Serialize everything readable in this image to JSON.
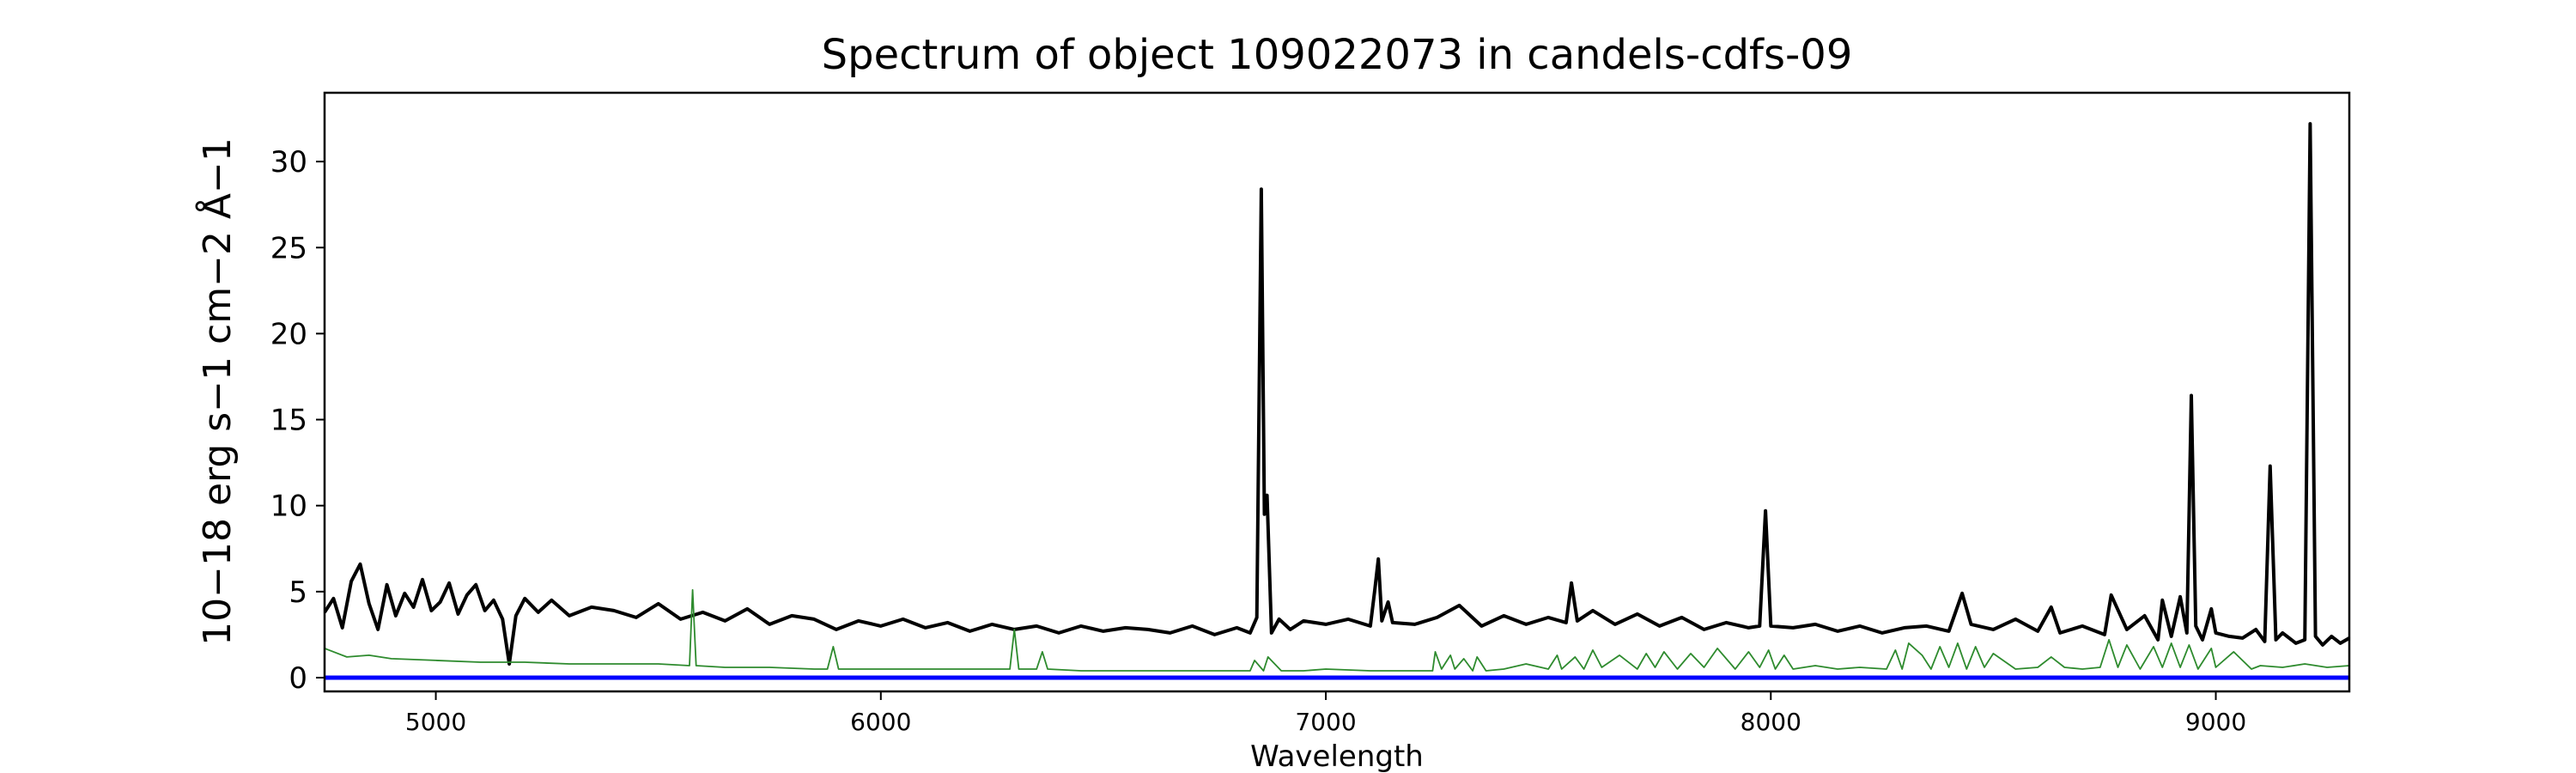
{
  "chart_data": {
    "type": "line",
    "title": "Spectrum of object 109022073 in candels-cdfs-09",
    "xlabel": "Wavelength",
    "ylabel": "10−18 erg s−1 cm−2 Å−1",
    "xlim": [
      4750,
      9300
    ],
    "ylim": [
      -0.8,
      34
    ],
    "x_ticks": [
      5000,
      6000,
      7000,
      8000,
      9000
    ],
    "y_ticks": [
      0,
      5,
      10,
      15,
      20,
      25,
      30
    ],
    "grid": false,
    "legend": "none",
    "series": [
      {
        "color": "#000000",
        "x": [
          4750,
          4770,
          4790,
          4810,
          4830,
          4850,
          4870,
          4890,
          4910,
          4930,
          4950,
          4970,
          4990,
          5010,
          5030,
          5050,
          5070,
          5090,
          5110,
          5130,
          5150,
          5165,
          5180,
          5200,
          5230,
          5260,
          5300,
          5350,
          5400,
          5450,
          5500,
          5550,
          5600,
          5650,
          5700,
          5750,
          5800,
          5850,
          5900,
          5950,
          6000,
          6050,
          6100,
          6150,
          6200,
          6250,
          6300,
          6350,
          6400,
          6450,
          6500,
          6550,
          6600,
          6650,
          6700,
          6750,
          6800,
          6830,
          6845,
          6855,
          6862,
          6868,
          6878,
          6895,
          6920,
          6950,
          7000,
          7050,
          7100,
          7110,
          7118,
          7126,
          7140,
          7150,
          7200,
          7250,
          7300,
          7350,
          7400,
          7450,
          7500,
          7540,
          7552,
          7565,
          7600,
          7650,
          7700,
          7750,
          7800,
          7850,
          7900,
          7950,
          7975,
          7988,
          8000,
          8050,
          8100,
          8150,
          8200,
          8250,
          8300,
          8350,
          8400,
          8430,
          8450,
          8500,
          8550,
          8600,
          8630,
          8650,
          8700,
          8750,
          8765,
          8800,
          8840,
          8870,
          8880,
          8900,
          8920,
          8935,
          8945,
          8955,
          8970,
          8990,
          9000,
          9030,
          9060,
          9090,
          9110,
          9122,
          9135,
          9150,
          9180,
          9200,
          9212,
          9224,
          9240,
          9260,
          9280,
          9300
        ],
        "y": [
          3.8,
          4.6,
          2.9,
          5.6,
          6.6,
          4.3,
          2.8,
          5.4,
          3.6,
          4.9,
          4.1,
          5.7,
          3.9,
          4.4,
          5.5,
          3.7,
          4.8,
          5.4,
          3.9,
          4.5,
          3.4,
          0.8,
          3.6,
          4.6,
          3.8,
          4.5,
          3.6,
          4.1,
          3.9,
          3.5,
          4.3,
          3.4,
          3.8,
          3.3,
          4.0,
          3.1,
          3.6,
          3.4,
          2.8,
          3.3,
          3.0,
          3.4,
          2.9,
          3.2,
          2.7,
          3.1,
          2.8,
          3.0,
          2.6,
          3.0,
          2.7,
          2.9,
          2.8,
          2.6,
          3.0,
          2.5,
          2.9,
          2.6,
          3.5,
          28.4,
          9.5,
          10.6,
          2.6,
          3.4,
          2.8,
          3.3,
          3.1,
          3.4,
          3.0,
          5.1,
          6.9,
          3.3,
          4.4,
          3.2,
          3.1,
          3.5,
          4.2,
          3.0,
          3.6,
          3.1,
          3.5,
          3.2,
          5.5,
          3.3,
          3.9,
          3.1,
          3.7,
          3.0,
          3.5,
          2.8,
          3.2,
          2.9,
          3.0,
          9.7,
          3.0,
          2.9,
          3.1,
          2.7,
          3.0,
          2.6,
          2.9,
          3.0,
          2.7,
          4.9,
          3.1,
          2.8,
          3.4,
          2.7,
          4.1,
          2.6,
          3.0,
          2.5,
          4.8,
          2.8,
          3.6,
          2.2,
          4.5,
          2.4,
          4.7,
          2.6,
          16.4,
          3.0,
          2.2,
          4.0,
          2.6,
          2.4,
          2.3,
          2.8,
          2.1,
          12.3,
          2.2,
          2.6,
          2.0,
          2.2,
          32.2,
          2.4,
          1.9,
          2.4,
          2.0,
          2.3
        ]
      },
      {
        "color": "#2e8b2e",
        "x": [
          4750,
          4800,
          4850,
          4900,
          5000,
          5100,
          5200,
          5300,
          5400,
          5500,
          5570,
          5577,
          5585,
          5650,
          5750,
          5850,
          5880,
          5893,
          5905,
          6000,
          6100,
          6200,
          6290,
          6300,
          6310,
          6350,
          6363,
          6375,
          6450,
          6550,
          6650,
          6750,
          6830,
          6840,
          6860,
          6870,
          6900,
          6950,
          7000,
          7100,
          7200,
          7240,
          7246,
          7260,
          7280,
          7290,
          7310,
          7330,
          7340,
          7360,
          7400,
          7450,
          7500,
          7520,
          7530,
          7560,
          7580,
          7600,
          7620,
          7660,
          7700,
          7720,
          7740,
          7760,
          7790,
          7820,
          7850,
          7880,
          7920,
          7950,
          7975,
          7995,
          8010,
          8030,
          8050,
          8100,
          8150,
          8200,
          8260,
          8280,
          8295,
          8310,
          8340,
          8360,
          8380,
          8400,
          8420,
          8440,
          8460,
          8480,
          8500,
          8550,
          8600,
          8630,
          8660,
          8700,
          8740,
          8760,
          8780,
          8800,
          8830,
          8860,
          8880,
          8900,
          8920,
          8940,
          8960,
          8990,
          9000,
          9040,
          9080,
          9100,
          9150,
          9200,
          9250,
          9300
        ],
        "y": [
          1.7,
          1.2,
          1.3,
          1.1,
          1.0,
          0.9,
          0.9,
          0.8,
          0.8,
          0.8,
          0.7,
          5.1,
          0.7,
          0.6,
          0.6,
          0.5,
          0.5,
          1.8,
          0.5,
          0.5,
          0.5,
          0.5,
          0.5,
          2.8,
          0.5,
          0.5,
          1.5,
          0.5,
          0.4,
          0.4,
          0.4,
          0.4,
          0.4,
          1.0,
          0.4,
          1.2,
          0.4,
          0.4,
          0.5,
          0.4,
          0.4,
          0.4,
          1.5,
          0.5,
          1.3,
          0.5,
          1.1,
          0.4,
          1.2,
          0.4,
          0.5,
          0.8,
          0.5,
          1.3,
          0.5,
          1.2,
          0.5,
          1.6,
          0.6,
          1.3,
          0.5,
          1.4,
          0.6,
          1.5,
          0.5,
          1.4,
          0.6,
          1.7,
          0.5,
          1.5,
          0.6,
          1.6,
          0.5,
          1.3,
          0.5,
          0.7,
          0.5,
          0.6,
          0.5,
          1.6,
          0.5,
          2.0,
          1.3,
          0.5,
          1.8,
          0.6,
          2.0,
          0.5,
          1.8,
          0.6,
          1.4,
          0.5,
          0.6,
          1.2,
          0.6,
          0.5,
          0.6,
          2.2,
          0.6,
          1.9,
          0.5,
          1.8,
          0.6,
          2.0,
          0.6,
          1.9,
          0.5,
          1.7,
          0.6,
          1.5,
          0.5,
          0.7,
          0.6,
          0.8,
          0.6,
          0.7
        ]
      },
      {
        "color": "#0000ff",
        "x": [
          4750,
          9300
        ],
        "y": [
          0,
          0
        ]
      }
    ]
  }
}
